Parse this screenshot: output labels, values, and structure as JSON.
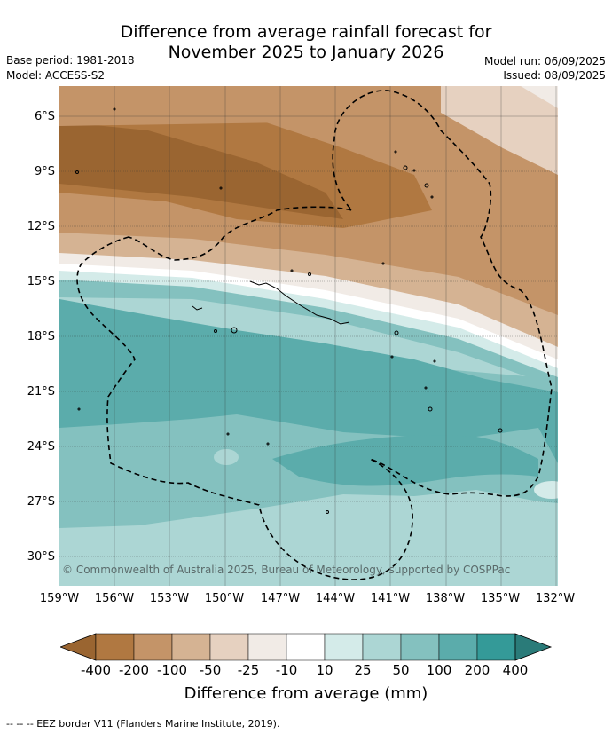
{
  "title": {
    "line1": "Difference from average rainfall forecast for",
    "line2": "November 2025 to January 2026"
  },
  "meta": {
    "base_period": "Base period: 1981-2018",
    "model": "Model: ACCESS-S2",
    "model_run": "Model run: 06/09/2025",
    "issued": "Issued: 08/09/2025"
  },
  "map": {
    "copyright": "© Commonwealth of Australia 2025, Bureau of Meteorology, supported by COSPPac",
    "lat_labels": [
      "6°S",
      "9°S",
      "12°S",
      "15°S",
      "18°S",
      "21°S",
      "24°S",
      "27°S",
      "30°S"
    ],
    "lon_labels": [
      "159°W",
      "156°W",
      "153°W",
      "150°W",
      "147°W",
      "144°W",
      "141°W",
      "138°W",
      "135°W",
      "132°W"
    ],
    "extent": {
      "lon": [
        -159,
        -132
      ],
      "lat": [
        -4.4,
        -31.5
      ]
    }
  },
  "colorbar": {
    "title": "Difference from average (mm)",
    "ticks": [
      "-400",
      "-200",
      "-100",
      "-50",
      "-25",
      "-10",
      "10",
      "25",
      "50",
      "100",
      "200",
      "400"
    ],
    "colors": [
      "#9a6531",
      "#b07841",
      "#c49468",
      "#d5b393",
      "#e6d1c0",
      "#f1ebe6",
      "#ffffff",
      "#d4ebe9",
      "#acd6d4",
      "#84c1bf",
      "#5bacab",
      "#349a98",
      "#2a7b79"
    ]
  },
  "legend": {
    "eez": "--  --  -- EEZ border V11 (Flanders Marine Institute, 2019)."
  }
}
